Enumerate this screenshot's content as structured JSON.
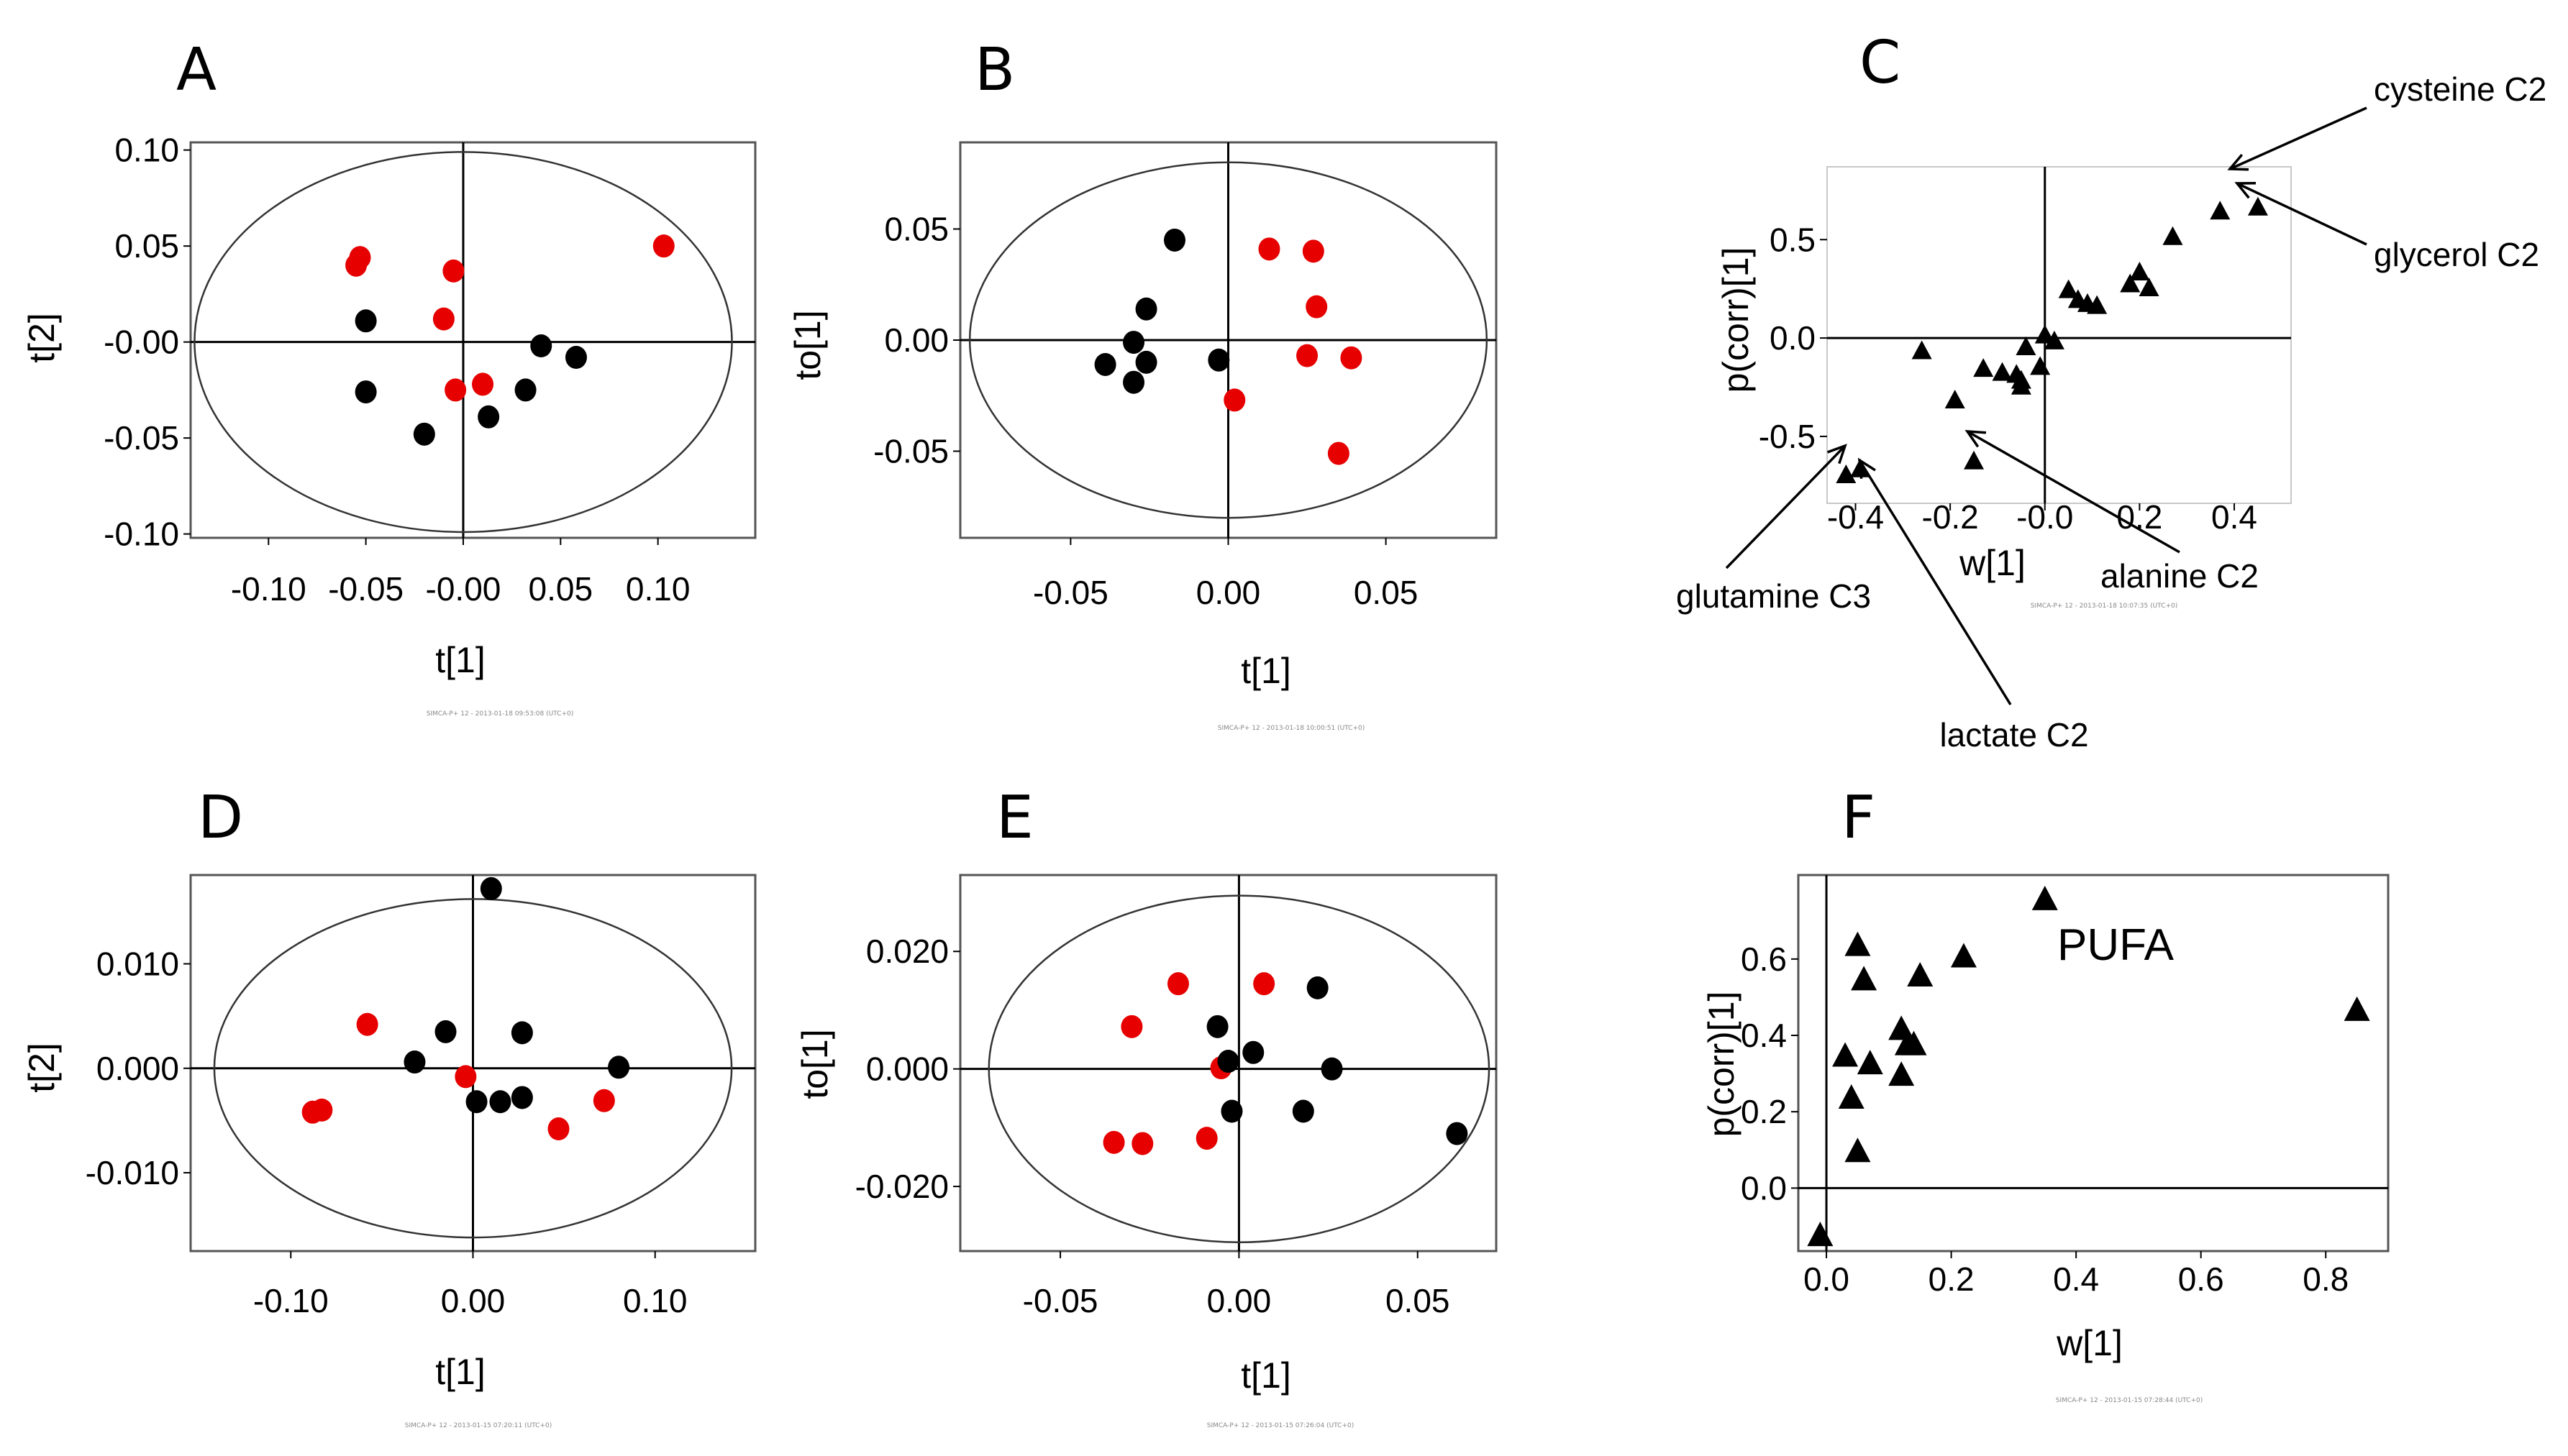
{
  "colors": {
    "groupA": "#e60000",
    "groupB": "#000000",
    "axis": "#000000",
    "frame": "#666666"
  },
  "chart_data": [
    {
      "id": "A",
      "letter": "A",
      "type": "scatter",
      "xlabel": "t[1]",
      "ylabel": "t[2]",
      "xlim": [
        -0.14,
        0.15
      ],
      "ylim": [
        -0.102,
        0.104
      ],
      "xticks": [
        -0.1,
        -0.05,
        0.0,
        0.05,
        0.1
      ],
      "xtick_labels": [
        "-0.10",
        "-0.05",
        "-0.00",
        "0.05",
        "0.10"
      ],
      "yticks": [
        0.1,
        0.05,
        0.0,
        -0.05,
        -0.1
      ],
      "ytick_labels": [
        "0.10",
        "0.05",
        "-0.00",
        "-0.05",
        "-0.10"
      ],
      "ellipse": {
        "rx": 0.138,
        "ry": 0.099
      },
      "footer": "SIMCA-P+ 12 - 2013-01-18 09:53:08 (UTC+0)",
      "series": [
        {
          "name": "red",
          "color": "#e60000",
          "points": [
            [
              -0.055,
              0.04
            ],
            [
              -0.053,
              0.044
            ],
            [
              -0.005,
              0.037
            ],
            [
              -0.01,
              0.012
            ],
            [
              -0.004,
              -0.025
            ],
            [
              0.01,
              -0.022
            ],
            [
              0.103,
              0.05
            ]
          ]
        },
        {
          "name": "black",
          "color": "#000000",
          "points": [
            [
              -0.05,
              0.011
            ],
            [
              -0.05,
              -0.026
            ],
            [
              -0.02,
              -0.048
            ],
            [
              0.013,
              -0.039
            ],
            [
              0.032,
              -0.025
            ],
            [
              0.04,
              -0.002
            ],
            [
              0.058,
              -0.008
            ]
          ]
        }
      ]
    },
    {
      "id": "B",
      "letter": "B",
      "type": "scatter",
      "xlabel": "t[1]",
      "ylabel": "to[1]",
      "xlim": [
        -0.085,
        0.085
      ],
      "ylim": [
        -0.089,
        0.089
      ],
      "xticks": [
        -0.05,
        0.0,
        0.05
      ],
      "xtick_labels": [
        "-0.05",
        "0.00",
        "0.05"
      ],
      "yticks": [
        0.05,
        0.0,
        -0.05
      ],
      "ytick_labels": [
        "0.05",
        "0.00",
        "-0.05"
      ],
      "ellipse": {
        "rx": 0.082,
        "ry": 0.08
      },
      "footer": "SIMCA-P+ 12 - 2013-01-18 10:00:51 (UTC+0)",
      "series": [
        {
          "name": "red",
          "color": "#e60000",
          "points": [
            [
              0.013,
              0.041
            ],
            [
              0.027,
              0.04
            ],
            [
              0.028,
              0.015
            ],
            [
              0.025,
              -0.007
            ],
            [
              0.039,
              -0.008
            ],
            [
              0.002,
              -0.027
            ],
            [
              0.035,
              -0.051
            ]
          ]
        },
        {
          "name": "black",
          "color": "#000000",
          "points": [
            [
              -0.017,
              0.045
            ],
            [
              -0.026,
              0.014
            ],
            [
              -0.03,
              -0.001
            ],
            [
              -0.026,
              -0.01
            ],
            [
              -0.03,
              -0.019
            ],
            [
              -0.039,
              -0.011
            ],
            [
              -0.003,
              -0.009
            ]
          ]
        }
      ]
    },
    {
      "id": "C",
      "letter": "C",
      "type": "scatter",
      "xlabel": "w[1]",
      "ylabel": "p(corr)[1]",
      "xlim": [
        -0.46,
        0.52
      ],
      "ylim": [
        -0.84,
        0.87
      ],
      "xticks": [
        -0.4,
        -0.2,
        0.0,
        0.2,
        0.4
      ],
      "xtick_labels": [
        "-0.4",
        "-0.2",
        "-0.0",
        "0.2",
        "0.4"
      ],
      "yticks": [
        0.5,
        0.0,
        -0.5
      ],
      "ytick_labels": [
        "0.5",
        "0.0",
        "-0.5"
      ],
      "footer": "SIMCA-P+ 12 - 2013-01-18 10:07:35 (UTC+0)",
      "series": [
        {
          "name": "variables",
          "color": "#000000",
          "points": [
            [
              -0.26,
              -0.06
            ],
            [
              -0.19,
              -0.31
            ],
            [
              -0.13,
              -0.15
            ],
            [
              -0.09,
              -0.17
            ],
            [
              -0.06,
              -0.18
            ],
            [
              -0.05,
              -0.21
            ],
            [
              -0.05,
              -0.24
            ],
            [
              -0.04,
              -0.04
            ],
            [
              -0.01,
              -0.14
            ],
            [
              0.0,
              0.02
            ],
            [
              0.02,
              -0.01
            ],
            [
              0.05,
              0.25
            ],
            [
              0.07,
              0.2
            ],
            [
              0.09,
              0.18
            ],
            [
              0.11,
              0.17
            ],
            [
              0.18,
              0.28
            ],
            [
              0.2,
              0.34
            ],
            [
              0.22,
              0.26
            ],
            [
              0.27,
              0.52
            ],
            [
              0.37,
              0.65
            ],
            [
              0.45,
              0.67
            ],
            [
              -0.42,
              -0.69
            ],
            [
              -0.39,
              -0.66
            ],
            [
              -0.15,
              -0.62
            ]
          ]
        }
      ],
      "annotations": [
        {
          "text": "cysteine C2"
        },
        {
          "text": "glycerol C2"
        },
        {
          "text": "alanine C2"
        },
        {
          "text": "glutamine C3"
        },
        {
          "text": "lactate C2"
        }
      ]
    },
    {
      "id": "D",
      "letter": "D",
      "type": "scatter",
      "xlabel": "t[1]",
      "ylabel": "t[2]",
      "xlim": [
        -0.155,
        0.155
      ],
      "ylim": [
        -0.0175,
        0.0185
      ],
      "xticks": [
        -0.1,
        0.0,
        0.1
      ],
      "xtick_labels": [
        "-0.10",
        "0.00",
        "0.10"
      ],
      "yticks": [
        0.01,
        0.0,
        -0.01
      ],
      "ytick_labels": [
        "0.010",
        "0.000",
        "-0.010"
      ],
      "ellipse": {
        "rx": 0.142,
        "ry": 0.0162
      },
      "footer": "SIMCA-P+ 12 - 2013-01-15 07:20:11 (UTC+0)",
      "series": [
        {
          "name": "red",
          "color": "#e60000",
          "points": [
            [
              -0.058,
              0.0042
            ],
            [
              -0.088,
              -0.0042
            ],
            [
              -0.083,
              -0.004
            ],
            [
              -0.004,
              -0.0008
            ],
            [
              0.047,
              -0.0058
            ],
            [
              0.072,
              -0.0031
            ]
          ]
        },
        {
          "name": "black",
          "color": "#000000",
          "points": [
            [
              0.01,
              0.0172
            ],
            [
              -0.015,
              0.0035
            ],
            [
              0.027,
              0.0034
            ],
            [
              -0.032,
              0.0006
            ],
            [
              0.002,
              -0.0032
            ],
            [
              0.015,
              -0.0032
            ],
            [
              0.027,
              -0.0028
            ],
            [
              0.08,
              0.0001
            ]
          ]
        }
      ]
    },
    {
      "id": "E",
      "letter": "E",
      "type": "scatter",
      "xlabel": "t[1]",
      "ylabel": "to[1]",
      "xlim": [
        -0.078,
        0.072
      ],
      "ylim": [
        -0.031,
        0.033
      ],
      "xticks": [
        -0.05,
        0.0,
        0.05
      ],
      "xtick_labels": [
        "-0.05",
        "0.00",
        "0.05"
      ],
      "yticks": [
        0.02,
        0.0,
        -0.02
      ],
      "ytick_labels": [
        "0.020",
        "0.000",
        "-0.020"
      ],
      "ellipse": {
        "rx": 0.07,
        "ry": 0.0295
      },
      "footer": "SIMCA-P+ 12 - 2013-01-15 07:26:04 (UTC+0)",
      "series": [
        {
          "name": "red",
          "color": "#e60000",
          "points": [
            [
              -0.017,
              0.0145
            ],
            [
              0.007,
              0.0145
            ],
            [
              -0.03,
              0.0072
            ],
            [
              -0.005,
              0.0002
            ],
            [
              -0.035,
              -0.0125
            ],
            [
              -0.027,
              -0.0127
            ],
            [
              -0.009,
              -0.0118
            ]
          ]
        },
        {
          "name": "black",
          "color": "#000000",
          "points": [
            [
              0.022,
              0.0138
            ],
            [
              -0.006,
              0.0072
            ],
            [
              0.004,
              0.0028
            ],
            [
              -0.003,
              0.0013
            ],
            [
              0.026,
              0.0
            ],
            [
              -0.002,
              -0.0072
            ],
            [
              0.018,
              -0.0072
            ],
            [
              0.061,
              -0.011
            ]
          ]
        }
      ]
    },
    {
      "id": "F",
      "letter": "F",
      "type": "scatter",
      "xlabel": "w[1]",
      "ylabel": "p(corr)[1]",
      "xlim": [
        -0.045,
        0.9
      ],
      "ylim": [
        -0.165,
        0.82
      ],
      "xticks": [
        0.0,
        0.2,
        0.4,
        0.6,
        0.8
      ],
      "xtick_labels": [
        "0.0",
        "0.2",
        "0.4",
        "0.6",
        "0.8"
      ],
      "yticks": [
        0.6,
        0.4,
        0.2,
        0.0
      ],
      "ytick_labels": [
        "0.6",
        "0.4",
        "0.2",
        "0.0"
      ],
      "footer": "SIMCA-P+ 12 - 2013-01-15 07:28:44 (UTC+0)",
      "series": [
        {
          "name": "variables",
          "color": "#000000",
          "points": [
            [
              -0.01,
              -0.12
            ],
            [
              0.03,
              0.35
            ],
            [
              0.04,
              0.24
            ],
            [
              0.05,
              0.64
            ],
            [
              0.06,
              0.55
            ],
            [
              0.05,
              0.1
            ],
            [
              0.07,
              0.33
            ],
            [
              0.12,
              0.42
            ],
            [
              0.13,
              0.38
            ],
            [
              0.15,
              0.56
            ],
            [
              0.14,
              0.38
            ],
            [
              0.12,
              0.3
            ],
            [
              0.22,
              0.61
            ],
            [
              0.35,
              0.76
            ],
            [
              0.85,
              0.47
            ]
          ]
        }
      ],
      "annotations": [
        {
          "text": "PUFA"
        }
      ]
    }
  ]
}
